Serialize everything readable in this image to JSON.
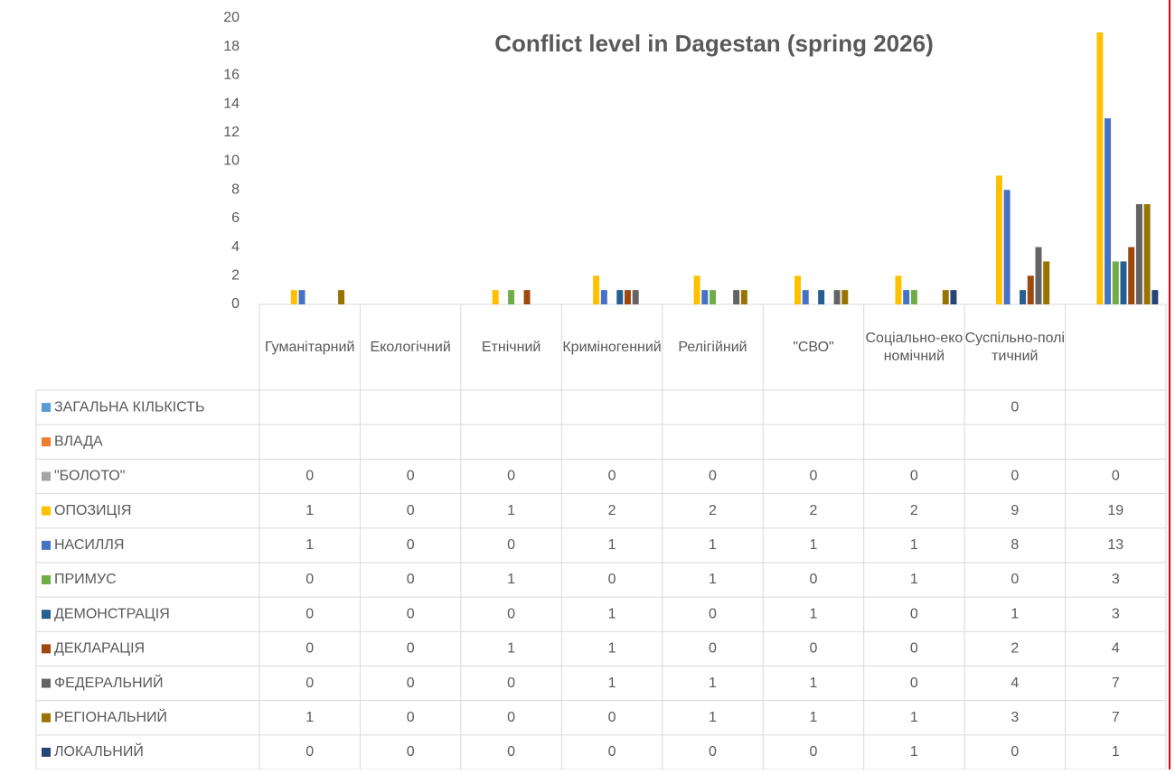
{
  "chart_data": {
    "type": "bar",
    "title": "Conflict level in Dagestan (spring 2026)",
    "categories": [
      "Гуманітарний",
      "Екологічний",
      "Етнічний",
      "Криміногенний",
      "Релігійний",
      "\"СВО\"",
      "Соціально-економічний",
      "Суспільно-політичний",
      null
    ],
    "series": [
      {
        "name": "ЗАГАЛЬНА КІЛЬКІСТЬ",
        "color": "#5b9bd5",
        "values": [
          null,
          null,
          null,
          null,
          null,
          null,
          null,
          0,
          null
        ]
      },
      {
        "name": "ВЛАДА",
        "color": "#ed7d31",
        "values": [
          null,
          null,
          null,
          null,
          null,
          null,
          null,
          null,
          null
        ]
      },
      {
        "name": "\"БОЛОТО\"",
        "color": "#a5a5a5",
        "values": [
          0,
          0,
          0,
          0,
          0,
          0,
          0,
          0,
          0
        ]
      },
      {
        "name": "ОПОЗИЦІЯ",
        "color": "#ffc000",
        "values": [
          1,
          0,
          1,
          2,
          2,
          2,
          2,
          9,
          19
        ]
      },
      {
        "name": "НАСИЛЛЯ",
        "color": "#4472c4",
        "values": [
          1,
          0,
          0,
          1,
          1,
          1,
          1,
          8,
          13
        ]
      },
      {
        "name": "ПРИМУС",
        "color": "#70ad47",
        "values": [
          0,
          0,
          1,
          0,
          1,
          0,
          1,
          0,
          3
        ]
      },
      {
        "name": "ДЕМОНСТРАЦІЯ",
        "color": "#255e91",
        "values": [
          0,
          0,
          0,
          1,
          0,
          1,
          0,
          1,
          3
        ]
      },
      {
        "name": "ДЕКЛАРАЦІЯ",
        "color": "#9e480e",
        "values": [
          0,
          0,
          1,
          1,
          0,
          0,
          0,
          2,
          4
        ]
      },
      {
        "name": "ФЕДЕРАЛЬНИЙ",
        "color": "#636363",
        "values": [
          0,
          0,
          0,
          1,
          1,
          1,
          0,
          4,
          7
        ]
      },
      {
        "name": "РЕГІОНАЛЬНИЙ",
        "color": "#997300",
        "values": [
          1,
          0,
          0,
          0,
          1,
          1,
          1,
          3,
          7
        ]
      },
      {
        "name": "ЛОКАЛЬНИЙ",
        "color": "#264478",
        "values": [
          0,
          0,
          0,
          0,
          0,
          0,
          1,
          0,
          1
        ]
      }
    ],
    "ylim": [
      0,
      20
    ],
    "yticks": [
      0,
      2,
      4,
      6,
      8,
      10,
      12,
      14,
      16,
      18,
      20
    ],
    "grid": false
  }
}
